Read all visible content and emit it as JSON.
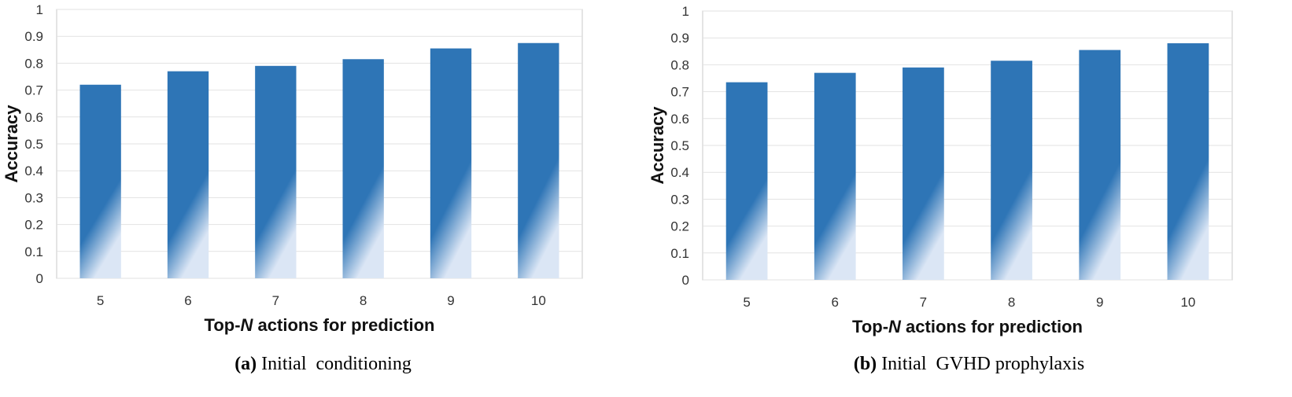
{
  "charts": [
    {
      "caption_label": "(a)",
      "caption_text": " Initial  conditioning",
      "chart_data": {
        "type": "bar",
        "categories": [
          "5",
          "6",
          "7",
          "8",
          "9",
          "10"
        ],
        "values": [
          0.72,
          0.77,
          0.79,
          0.815,
          0.855,
          0.875
        ],
        "title": "",
        "xlabel_prefix": "Top-",
        "xlabel_italic": "N",
        "xlabel_suffix": " actions for prediction",
        "ylabel": "Accuracy",
        "ylim": [
          0,
          1
        ],
        "yticks": [
          "0",
          "0.1",
          "0.2",
          "0.3",
          "0.4",
          "0.5",
          "0.6",
          "0.7",
          "0.8",
          "0.9",
          "1"
        ],
        "grid": true,
        "bar_color": "#2e75b6"
      }
    },
    {
      "caption_label": "(b)",
      "caption_text": " Initial  GVHD prophylaxis",
      "chart_data": {
        "type": "bar",
        "categories": [
          "5",
          "6",
          "7",
          "8",
          "9",
          "10"
        ],
        "values": [
          0.735,
          0.77,
          0.79,
          0.815,
          0.855,
          0.88
        ],
        "title": "",
        "xlabel_prefix": "Top-",
        "xlabel_italic": "N",
        "xlabel_suffix": " actions for prediction",
        "ylabel": "Accuracy",
        "ylim": [
          0,
          1
        ],
        "yticks": [
          "0",
          "0.1",
          "0.2",
          "0.3",
          "0.4",
          "0.5",
          "0.6",
          "0.7",
          "0.8",
          "0.9",
          "1"
        ],
        "grid": true,
        "bar_color": "#2e75b6"
      }
    }
  ]
}
